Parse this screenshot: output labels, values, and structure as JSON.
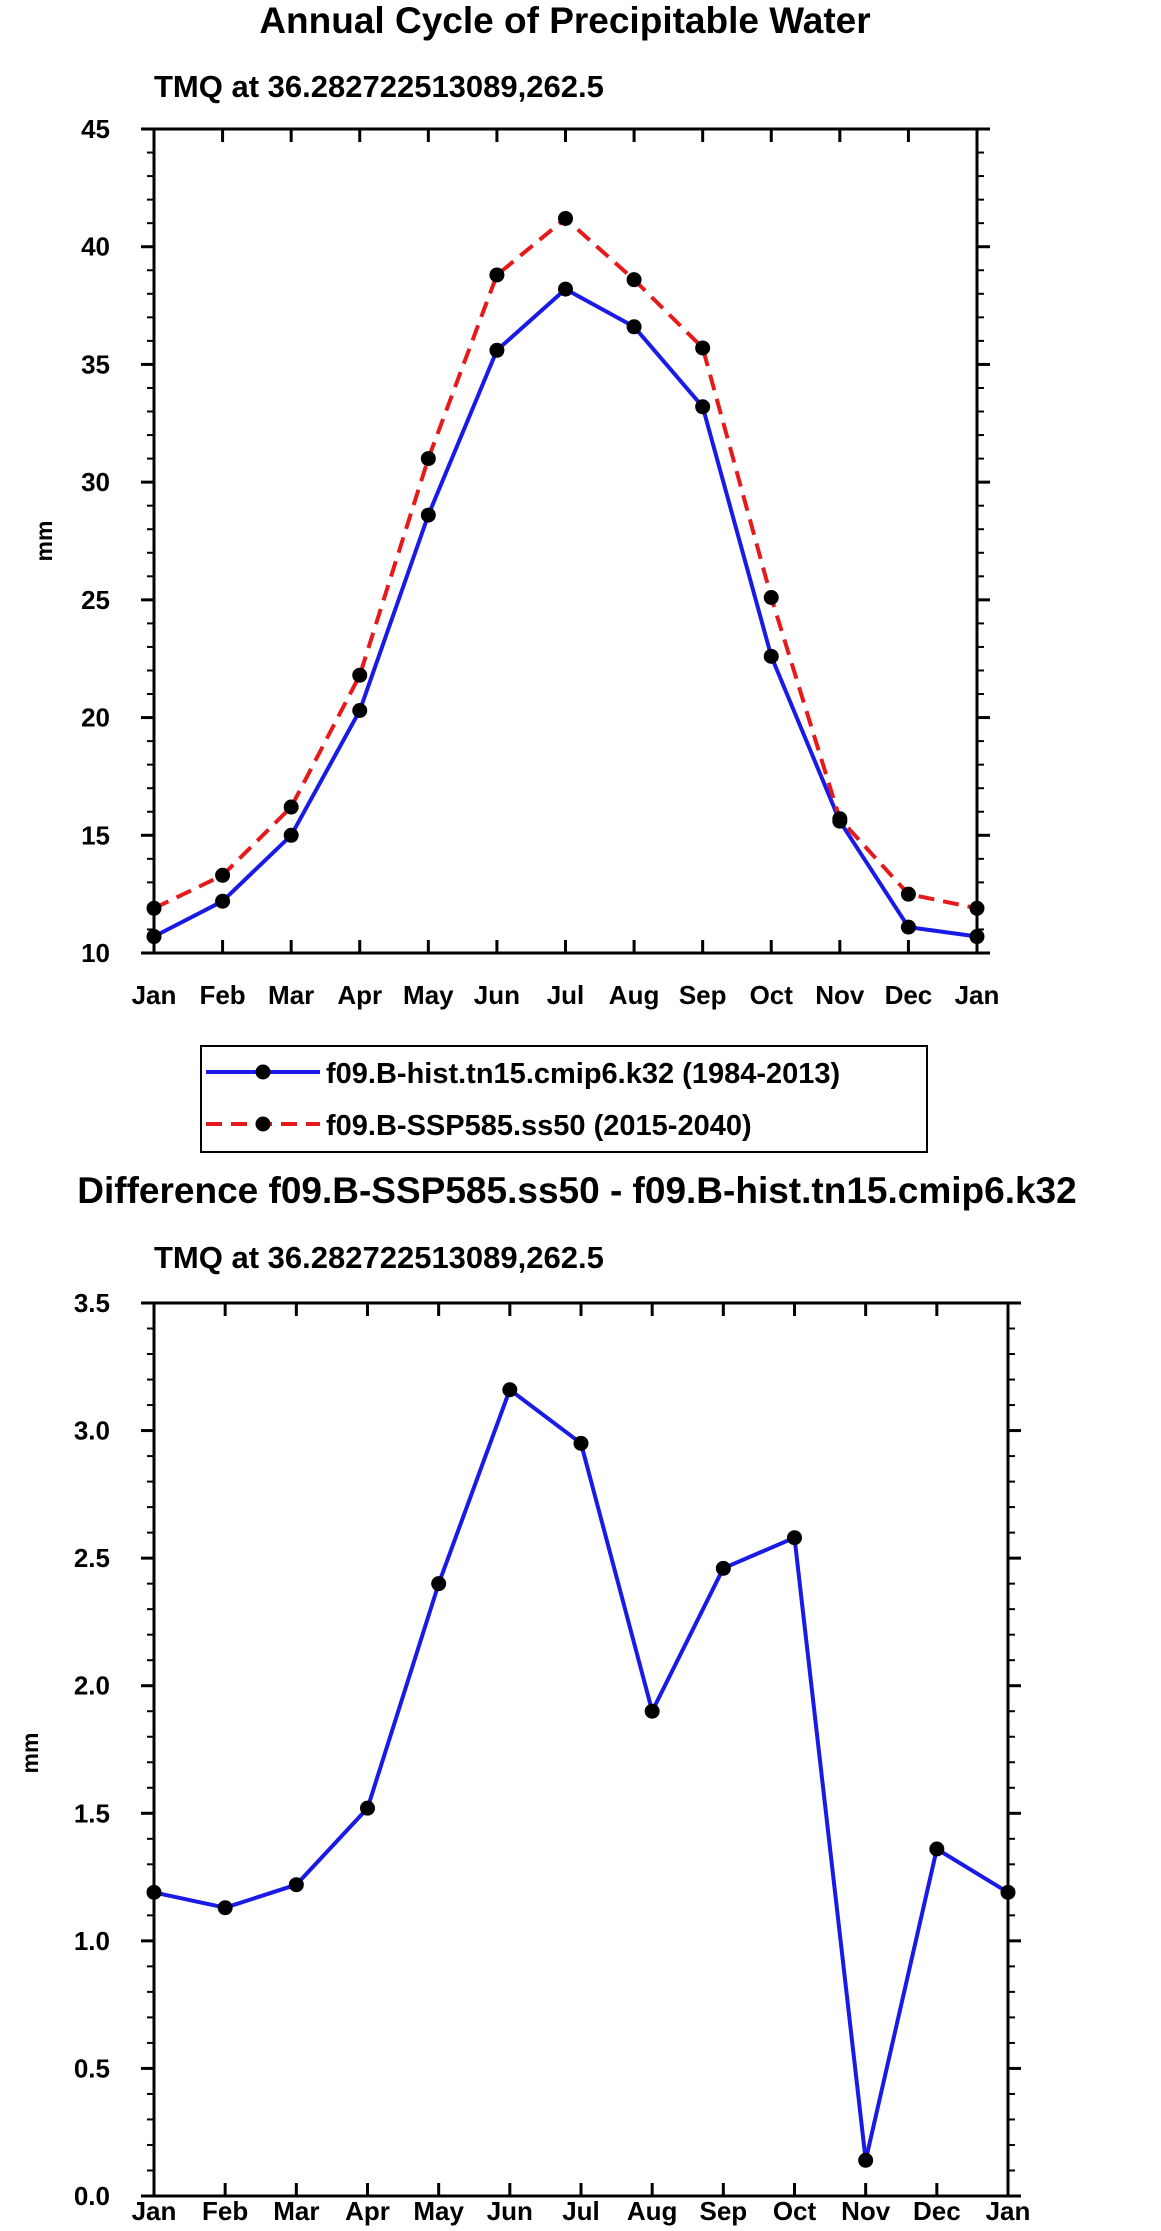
{
  "chart_data": [
    {
      "type": "line",
      "title": "Annual Cycle of Precipitable Water",
      "subtitle": "TMQ at 36.282722513089,262.5",
      "xlabel": "",
      "ylabel": "mm",
      "categories": [
        "Jan",
        "Feb",
        "Mar",
        "Apr",
        "May",
        "Jun",
        "Jul",
        "Aug",
        "Sep",
        "Oct",
        "Nov",
        "Dec",
        "Jan"
      ],
      "ylim": [
        10,
        45
      ],
      "yticks": [
        "10",
        "15",
        "20",
        "25",
        "30",
        "35",
        "40",
        "45"
      ],
      "ytick_values": [
        10,
        15,
        20,
        25,
        30,
        35,
        40,
        45
      ],
      "grid": false,
      "legend_position": "bottom",
      "series": [
        {
          "name": "f09.B-hist.tn15.cmip6.k32 (1984-2013)",
          "color": "#1a1ae6",
          "dash": "solid",
          "values": [
            10.7,
            12.2,
            15.0,
            20.3,
            28.6,
            35.6,
            38.2,
            36.6,
            33.2,
            22.6,
            15.6,
            11.1,
            10.7
          ]
        },
        {
          "name": "f09.B-SSP585.ss50 (2015-2040)",
          "color": "#e61a1a",
          "dash": "dashed",
          "values": [
            11.9,
            13.3,
            16.2,
            21.8,
            31.0,
            38.8,
            41.2,
            38.6,
            35.7,
            25.1,
            15.7,
            12.5,
            11.9
          ]
        }
      ]
    },
    {
      "type": "line",
      "title": "Difference f09.B-SSP585.ss50 - f09.B-hist.tn15.cmip6.k32",
      "subtitle": "TMQ at 36.282722513089,262.5",
      "xlabel": "",
      "ylabel": "mm",
      "categories": [
        "Jan",
        "Feb",
        "Mar",
        "Apr",
        "May",
        "Jun",
        "Jul",
        "Aug",
        "Sep",
        "Oct",
        "Nov",
        "Dec",
        "Jan"
      ],
      "ylim": [
        0,
        3.5
      ],
      "yticks": [
        "0.0",
        "0.5",
        "1.0",
        "1.5",
        "2.0",
        "2.5",
        "3.0",
        "3.5"
      ],
      "ytick_values": [
        0,
        0.5,
        1.0,
        1.5,
        2.0,
        2.5,
        3.0,
        3.5
      ],
      "grid": false,
      "series": [
        {
          "name": "Difference",
          "color": "#1a1ae6",
          "dash": "solid",
          "values": [
            1.19,
            1.13,
            1.22,
            1.52,
            2.4,
            3.16,
            2.95,
            1.9,
            2.46,
            2.58,
            0.14,
            1.36,
            1.19
          ]
        }
      ]
    }
  ]
}
